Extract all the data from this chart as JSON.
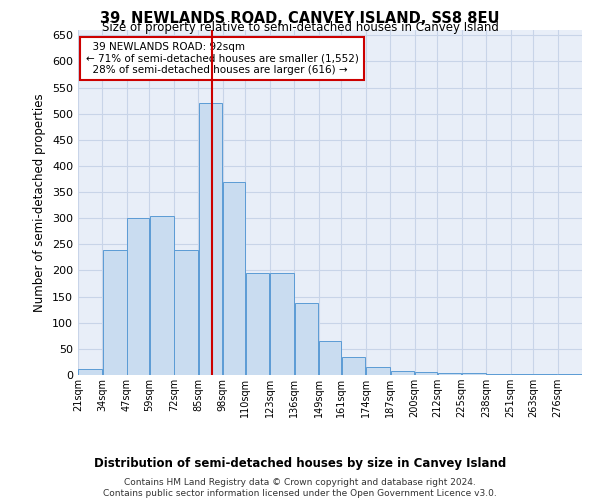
{
  "title": "39, NEWLANDS ROAD, CANVEY ISLAND, SS8 8EU",
  "subtitle": "Size of property relative to semi-detached houses in Canvey Island",
  "xlabel": "Distribution of semi-detached houses by size in Canvey Island",
  "ylabel": "Number of semi-detached properties",
  "property_label": "39 NEWLANDS ROAD: 92sqm",
  "pct_smaller": 71,
  "count_smaller": 1552,
  "pct_larger": 28,
  "count_larger": 616,
  "bin_labels": [
    "21sqm",
    "34sqm",
    "47sqm",
    "59sqm",
    "72sqm",
    "85sqm",
    "98sqm",
    "110sqm",
    "123sqm",
    "136sqm",
    "149sqm",
    "161sqm",
    "174sqm",
    "187sqm",
    "200sqm",
    "212sqm",
    "225sqm",
    "238sqm",
    "251sqm",
    "263sqm",
    "276sqm"
  ],
  "bin_edges": [
    21,
    34,
    47,
    59,
    72,
    85,
    98,
    110,
    123,
    136,
    149,
    161,
    174,
    187,
    200,
    212,
    225,
    238,
    251,
    263,
    276,
    289
  ],
  "values": [
    12,
    240,
    300,
    305,
    240,
    520,
    370,
    195,
    195,
    138,
    65,
    35,
    15,
    8,
    5,
    3,
    3,
    2,
    2,
    2,
    2
  ],
  "bar_color": "#c9dcf0",
  "bar_edge_color": "#5b9bd5",
  "grid_color": "#c8d4e8",
  "background_color": "#e8eef8",
  "vline_color": "#cc0000",
  "vline_x": 92,
  "box_color": "#cc0000",
  "ylim": [
    0,
    660
  ],
  "yticks": [
    0,
    50,
    100,
    150,
    200,
    250,
    300,
    350,
    400,
    450,
    500,
    550,
    600,
    650
  ],
  "footer_text": "Contains HM Land Registry data © Crown copyright and database right 2024.\nContains public sector information licensed under the Open Government Licence v3.0."
}
